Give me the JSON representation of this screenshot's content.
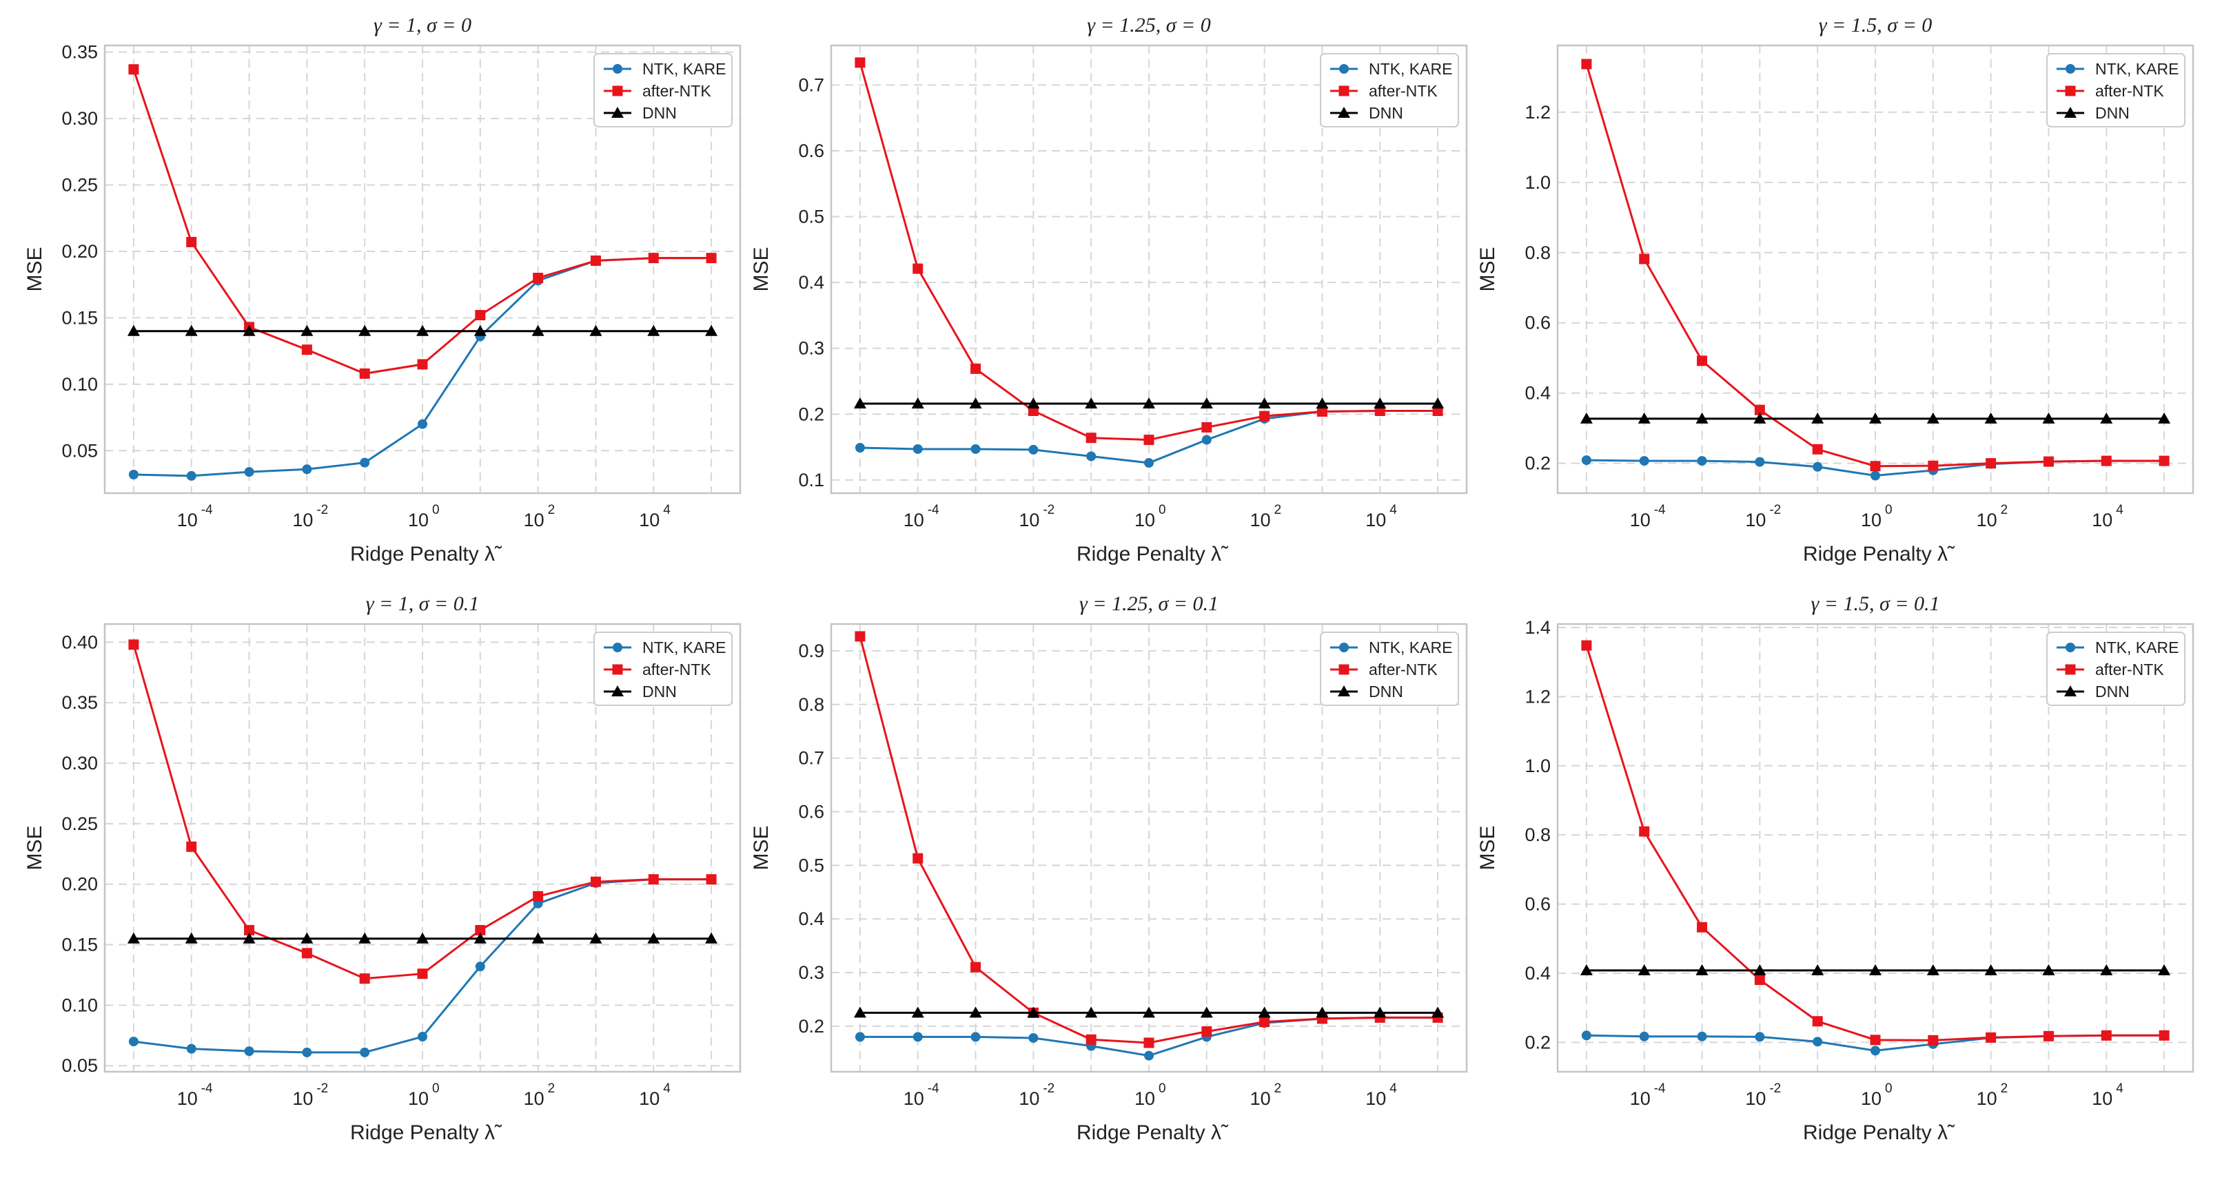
{
  "chart_data": [
    {
      "type": "line",
      "title": "γ = 1, σ = 0",
      "xlabel": "Ridge Penalty λ̃",
      "ylabel": "MSE",
      "xscale": "log",
      "xlim_exp": [
        -5.5,
        5.5
      ],
      "ylim": [
        0.018,
        0.355
      ],
      "yticks": [
        0.05,
        0.1,
        0.15,
        0.2,
        0.25,
        0.3,
        0.35
      ],
      "ytick_labels": [
        "0.05",
        "0.10",
        "0.15",
        "0.20",
        "0.25",
        "0.30",
        "0.35"
      ],
      "xtick_exps": [
        -4,
        -2,
        0,
        2,
        4
      ],
      "grid": true,
      "legend_location": "top-right",
      "x_exp": [
        -5,
        -4,
        -3,
        -2,
        -1,
        0,
        1,
        2,
        3,
        4,
        5
      ],
      "series": [
        {
          "name": "NTK, KARE",
          "color": "#1f77b4",
          "marker": "circle",
          "values": [
            0.032,
            0.031,
            0.034,
            0.036,
            0.041,
            0.07,
            0.136,
            0.178,
            0.193,
            0.195,
            0.195
          ]
        },
        {
          "name": "after-NTK",
          "color": "#e8141c",
          "marker": "square",
          "values": [
            0.337,
            0.207,
            0.143,
            0.126,
            0.108,
            0.115,
            0.152,
            0.18,
            0.193,
            0.195,
            0.195
          ]
        },
        {
          "name": "DNN",
          "color": "#000000",
          "marker": "triangle",
          "values": [
            0.14,
            0.14,
            0.14,
            0.14,
            0.14,
            0.14,
            0.14,
            0.14,
            0.14,
            0.14,
            0.14
          ]
        }
      ]
    },
    {
      "type": "line",
      "title": "γ = 1.25, σ = 0",
      "xlabel": "Ridge Penalty λ̃",
      "ylabel": "MSE",
      "xscale": "log",
      "xlim_exp": [
        -5.5,
        5.5
      ],
      "ylim": [
        0.08,
        0.76
      ],
      "yticks": [
        0.1,
        0.2,
        0.3,
        0.4,
        0.5,
        0.6,
        0.7
      ],
      "ytick_labels": [
        "0.1",
        "0.2",
        "0.3",
        "0.4",
        "0.5",
        "0.6",
        "0.7"
      ],
      "xtick_exps": [
        -4,
        -2,
        0,
        2,
        4
      ],
      "grid": true,
      "legend_location": "top-right",
      "x_exp": [
        -5,
        -4,
        -3,
        -2,
        -1,
        0,
        1,
        2,
        3,
        4,
        5
      ],
      "series": [
        {
          "name": "NTK, KARE",
          "color": "#1f77b4",
          "marker": "circle",
          "values": [
            0.149,
            0.147,
            0.147,
            0.146,
            0.136,
            0.126,
            0.161,
            0.193,
            0.204,
            0.205,
            0.205
          ]
        },
        {
          "name": "after-NTK",
          "color": "#e8141c",
          "marker": "square",
          "values": [
            0.734,
            0.421,
            0.269,
            0.205,
            0.164,
            0.161,
            0.18,
            0.197,
            0.204,
            0.205,
            0.205
          ]
        },
        {
          "name": "DNN",
          "color": "#000000",
          "marker": "triangle",
          "values": [
            0.216,
            0.216,
            0.216,
            0.216,
            0.216,
            0.216,
            0.216,
            0.216,
            0.216,
            0.216,
            0.216
          ]
        }
      ]
    },
    {
      "type": "line",
      "title": "γ = 1.5, σ = 0",
      "xlabel": "Ridge Penalty λ̃",
      "ylabel": "MSE",
      "xscale": "log",
      "xlim_exp": [
        -5.5,
        5.5
      ],
      "ylim": [
        0.115,
        1.39
      ],
      "yticks": [
        0.2,
        0.4,
        0.6,
        0.8,
        1.0,
        1.2
      ],
      "ytick_labels": [
        "0.2",
        "0.4",
        "0.6",
        "0.8",
        "1.0",
        "1.2"
      ],
      "xtick_exps": [
        -4,
        -2,
        0,
        2,
        4
      ],
      "grid": true,
      "legend_location": "top-right",
      "x_exp": [
        -5,
        -4,
        -3,
        -2,
        -1,
        0,
        1,
        2,
        3,
        4,
        5
      ],
      "series": [
        {
          "name": "NTK, KARE",
          "color": "#1f77b4",
          "marker": "circle",
          "values": [
            0.209,
            0.207,
            0.207,
            0.204,
            0.19,
            0.165,
            0.18,
            0.198,
            0.205,
            0.207,
            0.207
          ]
        },
        {
          "name": "after-NTK",
          "color": "#e8141c",
          "marker": "square",
          "values": [
            1.337,
            0.782,
            0.492,
            0.352,
            0.24,
            0.192,
            0.193,
            0.2,
            0.205,
            0.207,
            0.207
          ]
        },
        {
          "name": "DNN",
          "color": "#000000",
          "marker": "triangle",
          "values": [
            0.327,
            0.327,
            0.327,
            0.327,
            0.327,
            0.327,
            0.327,
            0.327,
            0.327,
            0.327,
            0.327
          ]
        }
      ]
    },
    {
      "type": "line",
      "title": "γ = 1, σ = 0.1",
      "xlabel": "Ridge Penalty λ̃",
      "ylabel": "MSE",
      "xscale": "log",
      "xlim_exp": [
        -5.5,
        5.5
      ],
      "ylim": [
        0.045,
        0.415
      ],
      "yticks": [
        0.05,
        0.1,
        0.15,
        0.2,
        0.25,
        0.3,
        0.35,
        0.4
      ],
      "ytick_labels": [
        "0.05",
        "0.10",
        "0.15",
        "0.20",
        "0.25",
        "0.30",
        "0.35",
        "0.40"
      ],
      "xtick_exps": [
        -4,
        -2,
        0,
        2,
        4
      ],
      "grid": true,
      "legend_location": "top-right",
      "x_exp": [
        -5,
        -4,
        -3,
        -2,
        -1,
        0,
        1,
        2,
        3,
        4,
        5
      ],
      "series": [
        {
          "name": "NTK, KARE",
          "color": "#1f77b4",
          "marker": "circle",
          "values": [
            0.07,
            0.064,
            0.062,
            0.061,
            0.061,
            0.074,
            0.132,
            0.184,
            0.201,
            0.204,
            0.204
          ]
        },
        {
          "name": "after-NTK",
          "color": "#e8141c",
          "marker": "square",
          "values": [
            0.398,
            0.231,
            0.162,
            0.143,
            0.122,
            0.126,
            0.162,
            0.19,
            0.202,
            0.204,
            0.204
          ]
        },
        {
          "name": "DNN",
          "color": "#000000",
          "marker": "triangle",
          "values": [
            0.155,
            0.155,
            0.155,
            0.155,
            0.155,
            0.155,
            0.155,
            0.155,
            0.155,
            0.155,
            0.155
          ]
        }
      ]
    },
    {
      "type": "line",
      "title": "γ = 1.25, σ = 0.1",
      "xlabel": "Ridge Penalty λ̃",
      "ylabel": "MSE",
      "xscale": "log",
      "xlim_exp": [
        -5.5,
        5.5
      ],
      "ylim": [
        0.115,
        0.95
      ],
      "yticks": [
        0.2,
        0.3,
        0.4,
        0.5,
        0.6,
        0.7,
        0.8,
        0.9
      ],
      "ytick_labels": [
        "0.2",
        "0.3",
        "0.4",
        "0.5",
        "0.6",
        "0.7",
        "0.8",
        "0.9"
      ],
      "xtick_exps": [
        -4,
        -2,
        0,
        2,
        4
      ],
      "grid": true,
      "legend_location": "top-right",
      "x_exp": [
        -5,
        -4,
        -3,
        -2,
        -1,
        0,
        1,
        2,
        3,
        4,
        5
      ],
      "series": [
        {
          "name": "NTK, KARE",
          "color": "#1f77b4",
          "marker": "circle",
          "values": [
            0.18,
            0.18,
            0.18,
            0.178,
            0.163,
            0.145,
            0.18,
            0.206,
            0.214,
            0.216,
            0.216
          ]
        },
        {
          "name": "after-NTK",
          "color": "#e8141c",
          "marker": "square",
          "values": [
            0.927,
            0.513,
            0.31,
            0.225,
            0.175,
            0.169,
            0.19,
            0.208,
            0.214,
            0.216,
            0.216
          ]
        },
        {
          "name": "DNN",
          "color": "#000000",
          "marker": "triangle",
          "values": [
            0.225,
            0.225,
            0.225,
            0.225,
            0.225,
            0.225,
            0.225,
            0.225,
            0.225,
            0.225,
            0.225
          ]
        }
      ]
    },
    {
      "type": "line",
      "title": "γ = 1.5, σ = 0.1",
      "xlabel": "Ridge Penalty λ̃",
      "ylabel": "MSE",
      "xscale": "log",
      "xlim_exp": [
        -5.5,
        5.5
      ],
      "ylim": [
        0.115,
        1.41
      ],
      "yticks": [
        0.2,
        0.4,
        0.6,
        0.8,
        1.0,
        1.2,
        1.4
      ],
      "ytick_labels": [
        "0.2",
        "0.4",
        "0.6",
        "0.8",
        "1.0",
        "1.2",
        "1.4"
      ],
      "xtick_exps": [
        -4,
        -2,
        0,
        2,
        4
      ],
      "grid": true,
      "legend_location": "top-right",
      "x_exp": [
        -5,
        -4,
        -3,
        -2,
        -1,
        0,
        1,
        2,
        3,
        4,
        5
      ],
      "series": [
        {
          "name": "NTK, KARE",
          "color": "#1f77b4",
          "marker": "circle",
          "values": [
            0.22,
            0.217,
            0.217,
            0.216,
            0.202,
            0.176,
            0.195,
            0.213,
            0.218,
            0.22,
            0.22
          ]
        },
        {
          "name": "after-NTK",
          "color": "#e8141c",
          "marker": "square",
          "values": [
            1.348,
            0.81,
            0.533,
            0.381,
            0.261,
            0.207,
            0.206,
            0.214,
            0.218,
            0.22,
            0.22
          ]
        },
        {
          "name": "DNN",
          "color": "#000000",
          "marker": "triangle",
          "values": [
            0.408,
            0.408,
            0.408,
            0.408,
            0.408,
            0.408,
            0.408,
            0.408,
            0.408,
            0.408,
            0.408
          ]
        }
      ]
    }
  ]
}
